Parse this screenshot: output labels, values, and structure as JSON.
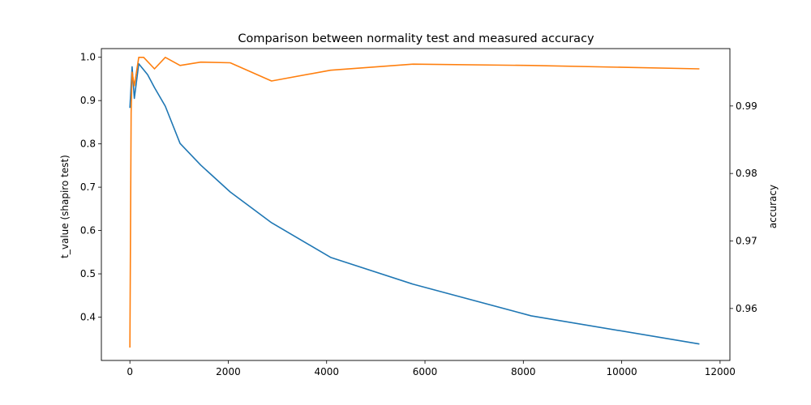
{
  "chart_data": {
    "type": "line",
    "title": "Comparison between normality test and measured accuracy",
    "xlabel": "",
    "ylabel_left": "t_value (shapiro test)",
    "ylabel_right": "accuracy",
    "xlim": [
      -580,
      12200
    ],
    "ylim_left": [
      0.3,
      1.02
    ],
    "ylim_right": [
      0.9523,
      0.9985
    ],
    "xticks": [
      0,
      2000,
      4000,
      6000,
      8000,
      10000,
      12000
    ],
    "yticks_left": [
      0.4,
      0.5,
      0.6,
      0.7,
      0.8,
      0.9,
      1.0
    ],
    "yticks_right": [
      0.96,
      0.97,
      0.98,
      0.99
    ],
    "grid": false,
    "series": [
      {
        "axis": "left",
        "color": "#1f77b4",
        "x": [
          0,
          45,
          90,
          180,
          360,
          500,
          720,
          1020,
          1440,
          2040,
          2880,
          4080,
          5760,
          8160,
          11580
        ],
        "y": [
          0.883,
          0.978,
          0.905,
          0.985,
          0.96,
          0.93,
          0.887,
          0.801,
          0.751,
          0.689,
          0.618,
          0.538,
          0.476,
          0.403,
          0.338
        ]
      },
      {
        "axis": "right",
        "color": "#ff7f0e",
        "x": [
          0,
          25,
          45,
          90,
          180,
          280,
          500,
          720,
          1020,
          1440,
          2040,
          2880,
          4080,
          5760,
          8160,
          11580
        ],
        "y": [
          0.9542,
          0.989,
          0.995,
          0.993,
          0.9972,
          0.9972,
          0.9955,
          0.9972,
          0.996,
          0.9965,
          0.9964,
          0.9937,
          0.9953,
          0.9962,
          0.996,
          0.9955
        ]
      }
    ]
  }
}
